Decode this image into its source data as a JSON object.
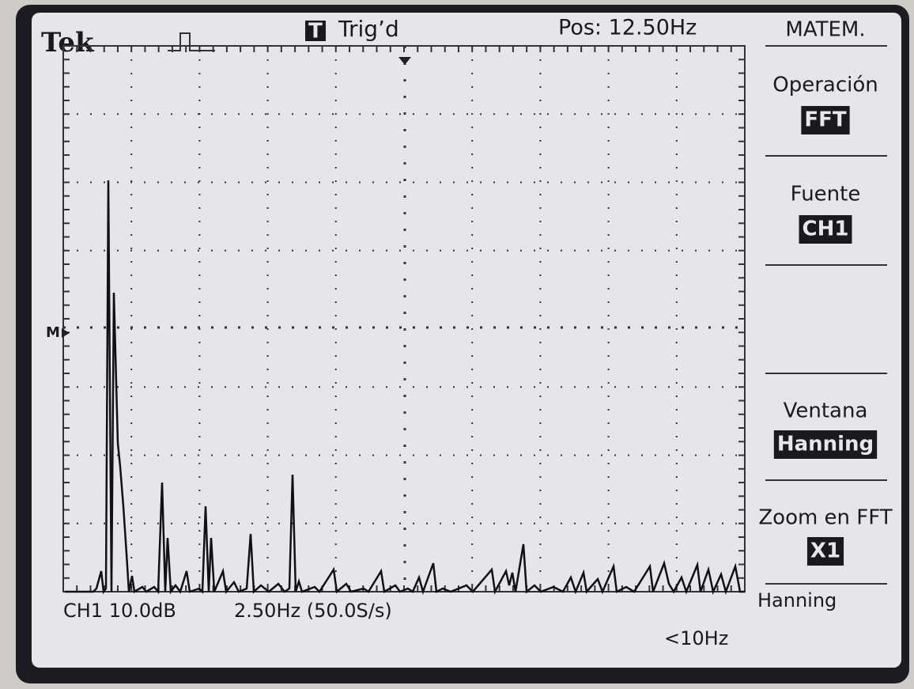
{
  "header": {
    "brand": "Tek",
    "trigger_icon": "T",
    "trigger": "Trig’d",
    "position": "Pos: 12.50Hz"
  },
  "marker": "M",
  "menu": {
    "title": "MATEM.",
    "items": [
      {
        "label": "Operación",
        "value": "FFT"
      },
      {
        "label": "Fuente",
        "value": "CH1"
      },
      {
        "label": "Ventana",
        "value": "Hanning"
      },
      {
        "label": "Zoom en FFT",
        "value": "X1"
      }
    ],
    "footer": "Hanning"
  },
  "status": {
    "channel": "CH1 10.0dB",
    "timebase": "2.50Hz (50.0S/s)",
    "filter": "<10Hz"
  }
}
